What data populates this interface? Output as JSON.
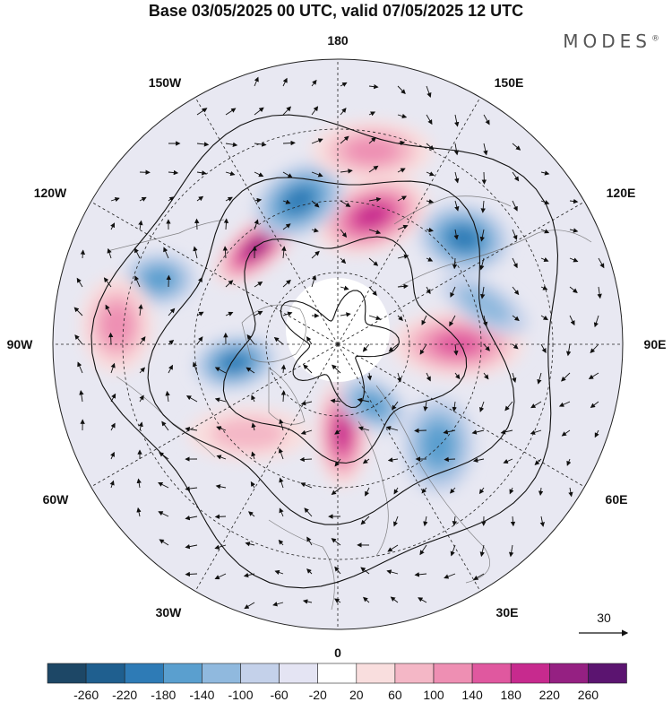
{
  "title": "Base 03/05/2025 00 UTC, valid 07/05/2025 12 UTC",
  "logo": "MODES",
  "logo_mark": "®",
  "longitude_labels": {
    "top": "180",
    "bottom": "0",
    "left": "90W",
    "right": "90E",
    "upper_left": "150W",
    "upper_right": "150E",
    "left_upper": "120W",
    "right_upper": "120E",
    "left_lower": "60W",
    "right_lower": "60E",
    "lower_left": "30W",
    "lower_right": "30E"
  },
  "vector_reference": {
    "value": "30"
  },
  "colorbar": {
    "ticks": [
      "-260",
      "-220",
      "-180",
      "-140",
      "-100",
      "-60",
      "-20",
      "20",
      "60",
      "100",
      "140",
      "180",
      "220",
      "260"
    ],
    "colors": [
      "#1d4766",
      "#1f5f8f",
      "#2e7bb6",
      "#5a9fcf",
      "#90b9de",
      "#c4d1ea",
      "#e4e4f3",
      "#ffffff",
      "#f9dede",
      "#f4b7c6",
      "#ee8fb3",
      "#e0589f",
      "#c72a8e",
      "#952082",
      "#5b1470"
    ]
  },
  "anomaly_features": [
    {
      "id": "ridge-alaska",
      "sign": "positive",
      "level": 5,
      "lon": -140,
      "colat": 40,
      "a": 42,
      "b": 20,
      "rot": -40
    },
    {
      "id": "ridge-east-siberia",
      "sign": "positive",
      "level": 4,
      "lon": 165,
      "colat": 42,
      "a": 48,
      "b": 30,
      "rot": -20
    },
    {
      "id": "ridge-siberia",
      "sign": "positive",
      "level": 3,
      "lon": 90,
      "colat": 38,
      "a": 55,
      "b": 28,
      "rot": 0
    },
    {
      "id": "ridge-europe",
      "sign": "positive",
      "level": 4,
      "lon": 3,
      "colat": 28,
      "a": 45,
      "b": 22,
      "rot": 90
    },
    {
      "id": "trough-bering",
      "sign": "negative",
      "level": 3,
      "lon": -165,
      "colat": 47,
      "a": 40,
      "b": 28,
      "rot": -30
    },
    {
      "id": "trough-okhotsk",
      "sign": "negative",
      "level": 3,
      "lon": 130,
      "colat": 52,
      "a": 38,
      "b": 28,
      "rot": 10
    },
    {
      "id": "trough-pacific-nw",
      "sign": "negative",
      "level": 2,
      "lon": -110,
      "colat": 60,
      "a": 30,
      "b": 22,
      "rot": 0
    },
    {
      "id": "trough-hudson",
      "sign": "negative",
      "level": 3,
      "lon": -80,
      "colat": 33,
      "a": 34,
      "b": 22,
      "rot": -10
    },
    {
      "id": "trough-scandinavia",
      "sign": "negative",
      "level": 2,
      "lon": 30,
      "colat": 22,
      "a": 30,
      "b": 20,
      "rot": 30
    },
    {
      "id": "trough-caspian",
      "sign": "negative",
      "level": 2,
      "lon": 45,
      "colat": 45,
      "a": 30,
      "b": 40,
      "rot": 0
    },
    {
      "id": "trough-west-siberia",
      "sign": "negative",
      "level": 1,
      "lon": 105,
      "colat": 48,
      "a": 40,
      "b": 18,
      "rot": 30
    },
    {
      "id": "ridge-atlantic",
      "sign": "positive",
      "level": 1,
      "lon": -45,
      "colat": 40,
      "a": 50,
      "b": 22,
      "rot": 0
    },
    {
      "id": "ridge-mexico",
      "sign": "positive",
      "level": 2,
      "lon": -95,
      "colat": 70,
      "a": 30,
      "b": 40,
      "rot": 0
    },
    {
      "id": "ridge-n-pacific",
      "sign": "positive",
      "level": 2,
      "lon": 170,
      "colat": 62,
      "a": 50,
      "b": 25,
      "rot": 0
    }
  ]
}
